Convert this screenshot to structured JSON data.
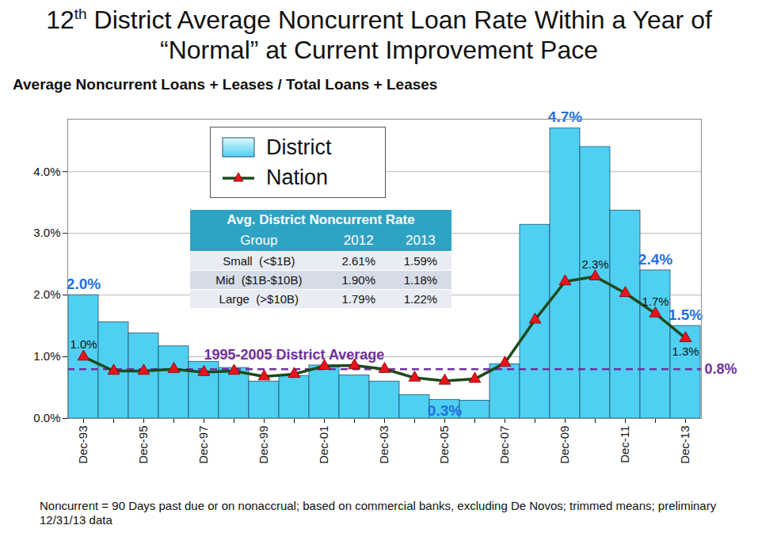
{
  "chart_data": {
    "type": "bar",
    "title": "12th District Average Noncurrent Loan Rate Within a Year of “Normal” at Current Improvement Pace",
    "subtitle": "Average Noncurrent Loans + Leases / Total Loans + Leases",
    "categories": [
      "Dec-93",
      null,
      "Dec-95",
      null,
      "Dec-97",
      null,
      "Dec-99",
      null,
      "Dec-01",
      null,
      "Dec-03",
      null,
      "Dec-05",
      null,
      "Dec-07",
      null,
      "Dec-09",
      null,
      "Dec-11",
      null,
      "Dec-13"
    ],
    "series": [
      {
        "name": "District",
        "type": "bar",
        "color": "#4fd0f2",
        "values": [
          2.0,
          1.56,
          1.38,
          1.17,
          0.92,
          0.82,
          0.6,
          0.69,
          0.86,
          0.7,
          0.6,
          0.38,
          0.3,
          0.29,
          0.88,
          3.14,
          4.7,
          4.4,
          3.37,
          2.4,
          1.5
        ],
        "value_labels": [
          "2.0%",
          null,
          null,
          null,
          null,
          null,
          null,
          null,
          null,
          null,
          null,
          null,
          "0.3%",
          null,
          null,
          null,
          "4.7%",
          null,
          null,
          "2.4%",
          "1.5%"
        ]
      },
      {
        "name": "Nation",
        "type": "line",
        "color": "#1c4a1c",
        "marker": "triangle",
        "values": [
          1.0,
          0.77,
          0.77,
          0.8,
          0.75,
          0.77,
          0.68,
          0.72,
          0.85,
          0.86,
          0.8,
          0.66,
          0.61,
          0.64,
          0.9,
          1.6,
          2.22,
          2.3,
          2.03,
          1.7,
          1.3
        ],
        "value_labels": [
          "1.0%",
          null,
          null,
          null,
          null,
          null,
          null,
          null,
          null,
          null,
          null,
          null,
          null,
          null,
          null,
          null,
          null,
          "2.3%",
          null,
          "1.7%",
          "1.3%"
        ]
      }
    ],
    "ylim": [
      0,
      4.85
    ],
    "yticks": [
      {
        "value": 0,
        "label": "0.0%"
      },
      {
        "value": 1,
        "label": "1.0%"
      },
      {
        "value": 2,
        "label": "2.0%"
      },
      {
        "value": 3,
        "label": "3.0%"
      },
      {
        "value": 4,
        "label": "4.0%"
      }
    ],
    "grid": true,
    "legend": "top",
    "reference_lines": [
      {
        "value": 0.8,
        "label": "1995-2005 District Average",
        "value_label": "0.8%",
        "color": "#7030a0",
        "line_style": "dashed"
      }
    ],
    "table": {
      "title": "Avg. District Noncurrent Rate",
      "columns": [
        "Group",
        "2012",
        "2013"
      ],
      "rows": [
        [
          "Small  (<$1B)",
          "2.61%",
          "1.59%"
        ],
        [
          "Mid  ($1B-$10B)",
          "1.90%",
          "1.18%"
        ],
        [
          "Large  (>$10B)",
          "1.79%",
          "1.22%"
        ]
      ]
    },
    "note": "Noncurrent = 90 Days past due or on nonaccrual; based on commercial banks, excluding De Novos; trimmed means; preliminary 12/31/13 data"
  }
}
